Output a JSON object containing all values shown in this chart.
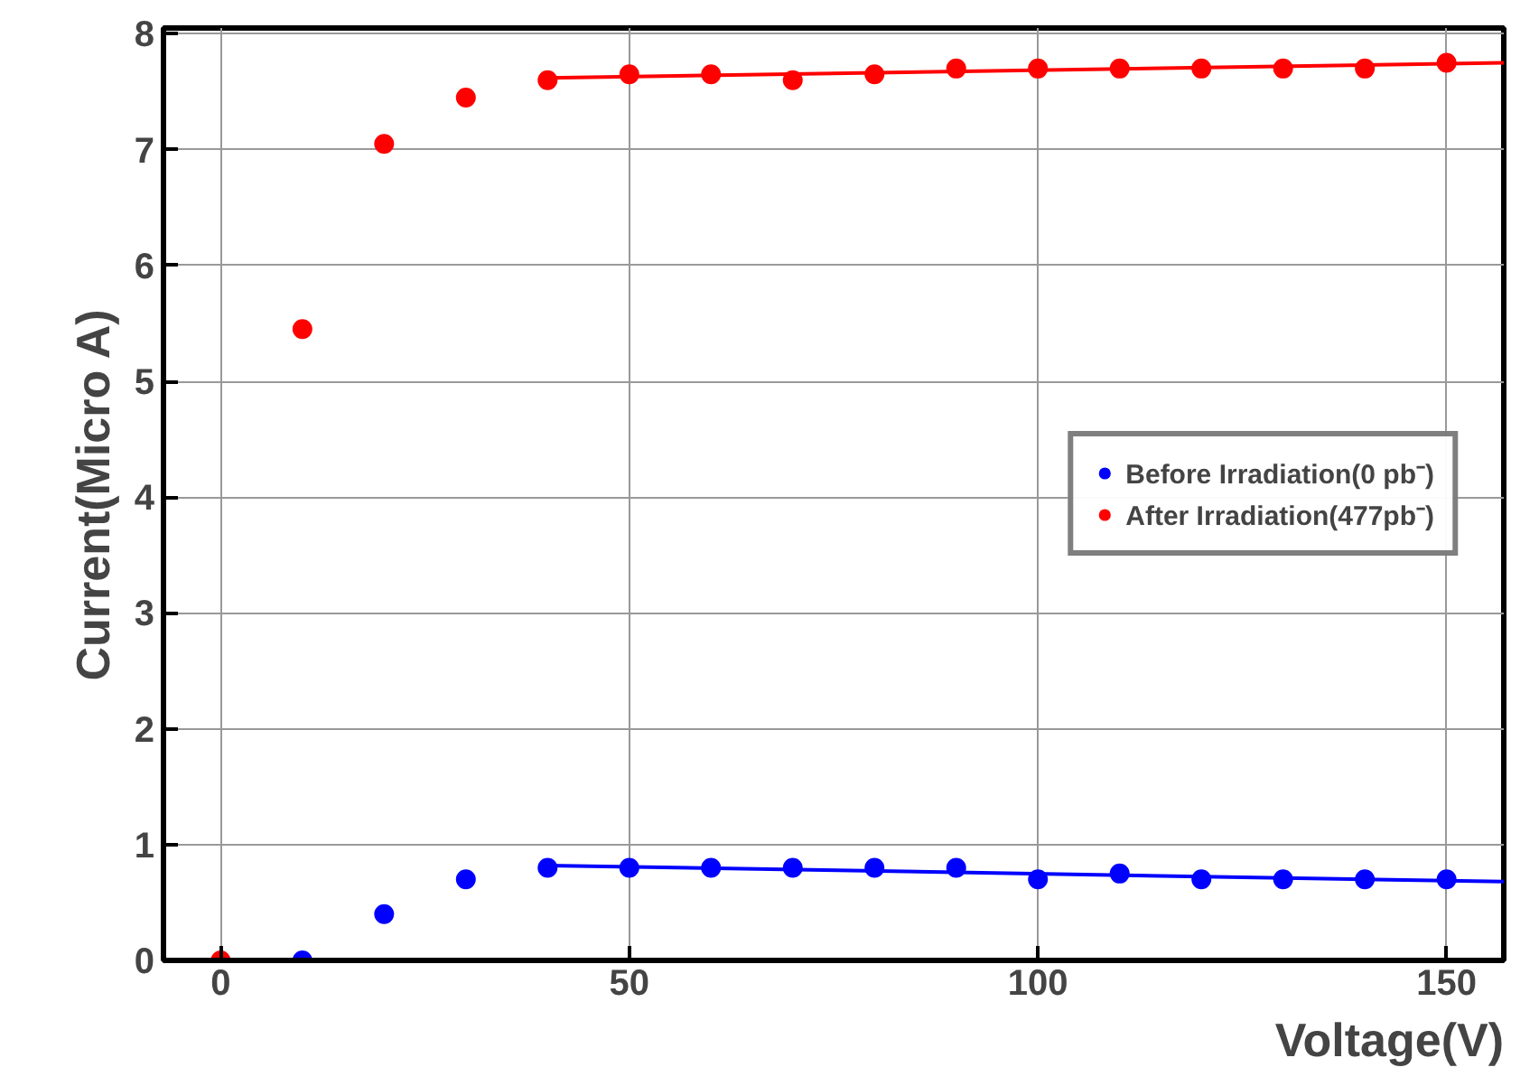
{
  "chart_data": {
    "type": "scatter",
    "xlabel": "Voltage(V)",
    "ylabel": "Current(Micro A)",
    "xlim": [
      -7,
      157
    ],
    "ylim": [
      0,
      8.05
    ],
    "xticks": [
      0,
      50,
      100,
      150
    ],
    "yticks": [
      0,
      1,
      2,
      3,
      4,
      5,
      6,
      7,
      8
    ],
    "grid": true,
    "legend": "right",
    "series": [
      {
        "name": "Before Irradiation(0 pb⁻)",
        "marker": "circle",
        "color": "#0000ff",
        "x": [
          10,
          20,
          30,
          40,
          50,
          60,
          70,
          80,
          90,
          100,
          110,
          120,
          130,
          140,
          150
        ],
        "values": [
          0,
          0.4,
          0.7,
          0.8,
          0.8,
          0.8,
          0.8,
          0.8,
          0.8,
          0.7,
          0.75,
          0.7,
          0.7,
          0.7,
          0.7
        ]
      },
      {
        "name": "After Irradiation(477pb⁻)",
        "marker": "circle",
        "color": "#ff0000",
        "x": [
          0,
          10,
          20,
          30,
          40,
          50,
          60,
          70,
          80,
          90,
          100,
          110,
          120,
          130,
          140,
          150
        ],
        "values": [
          0,
          5.45,
          7.05,
          7.45,
          7.6,
          7.65,
          7.65,
          7.6,
          7.65,
          7.7,
          7.7,
          7.7,
          7.7,
          7.7,
          7.7,
          7.75
        ]
      },
      {
        "type": "line",
        "color": "#0000ff",
        "x": [
          40,
          157
        ],
        "values": [
          0.82,
          0.68
        ]
      },
      {
        "type": "line",
        "color": "#ff0000",
        "x": [
          40,
          157
        ],
        "values": [
          7.62,
          7.75
        ]
      }
    ]
  }
}
